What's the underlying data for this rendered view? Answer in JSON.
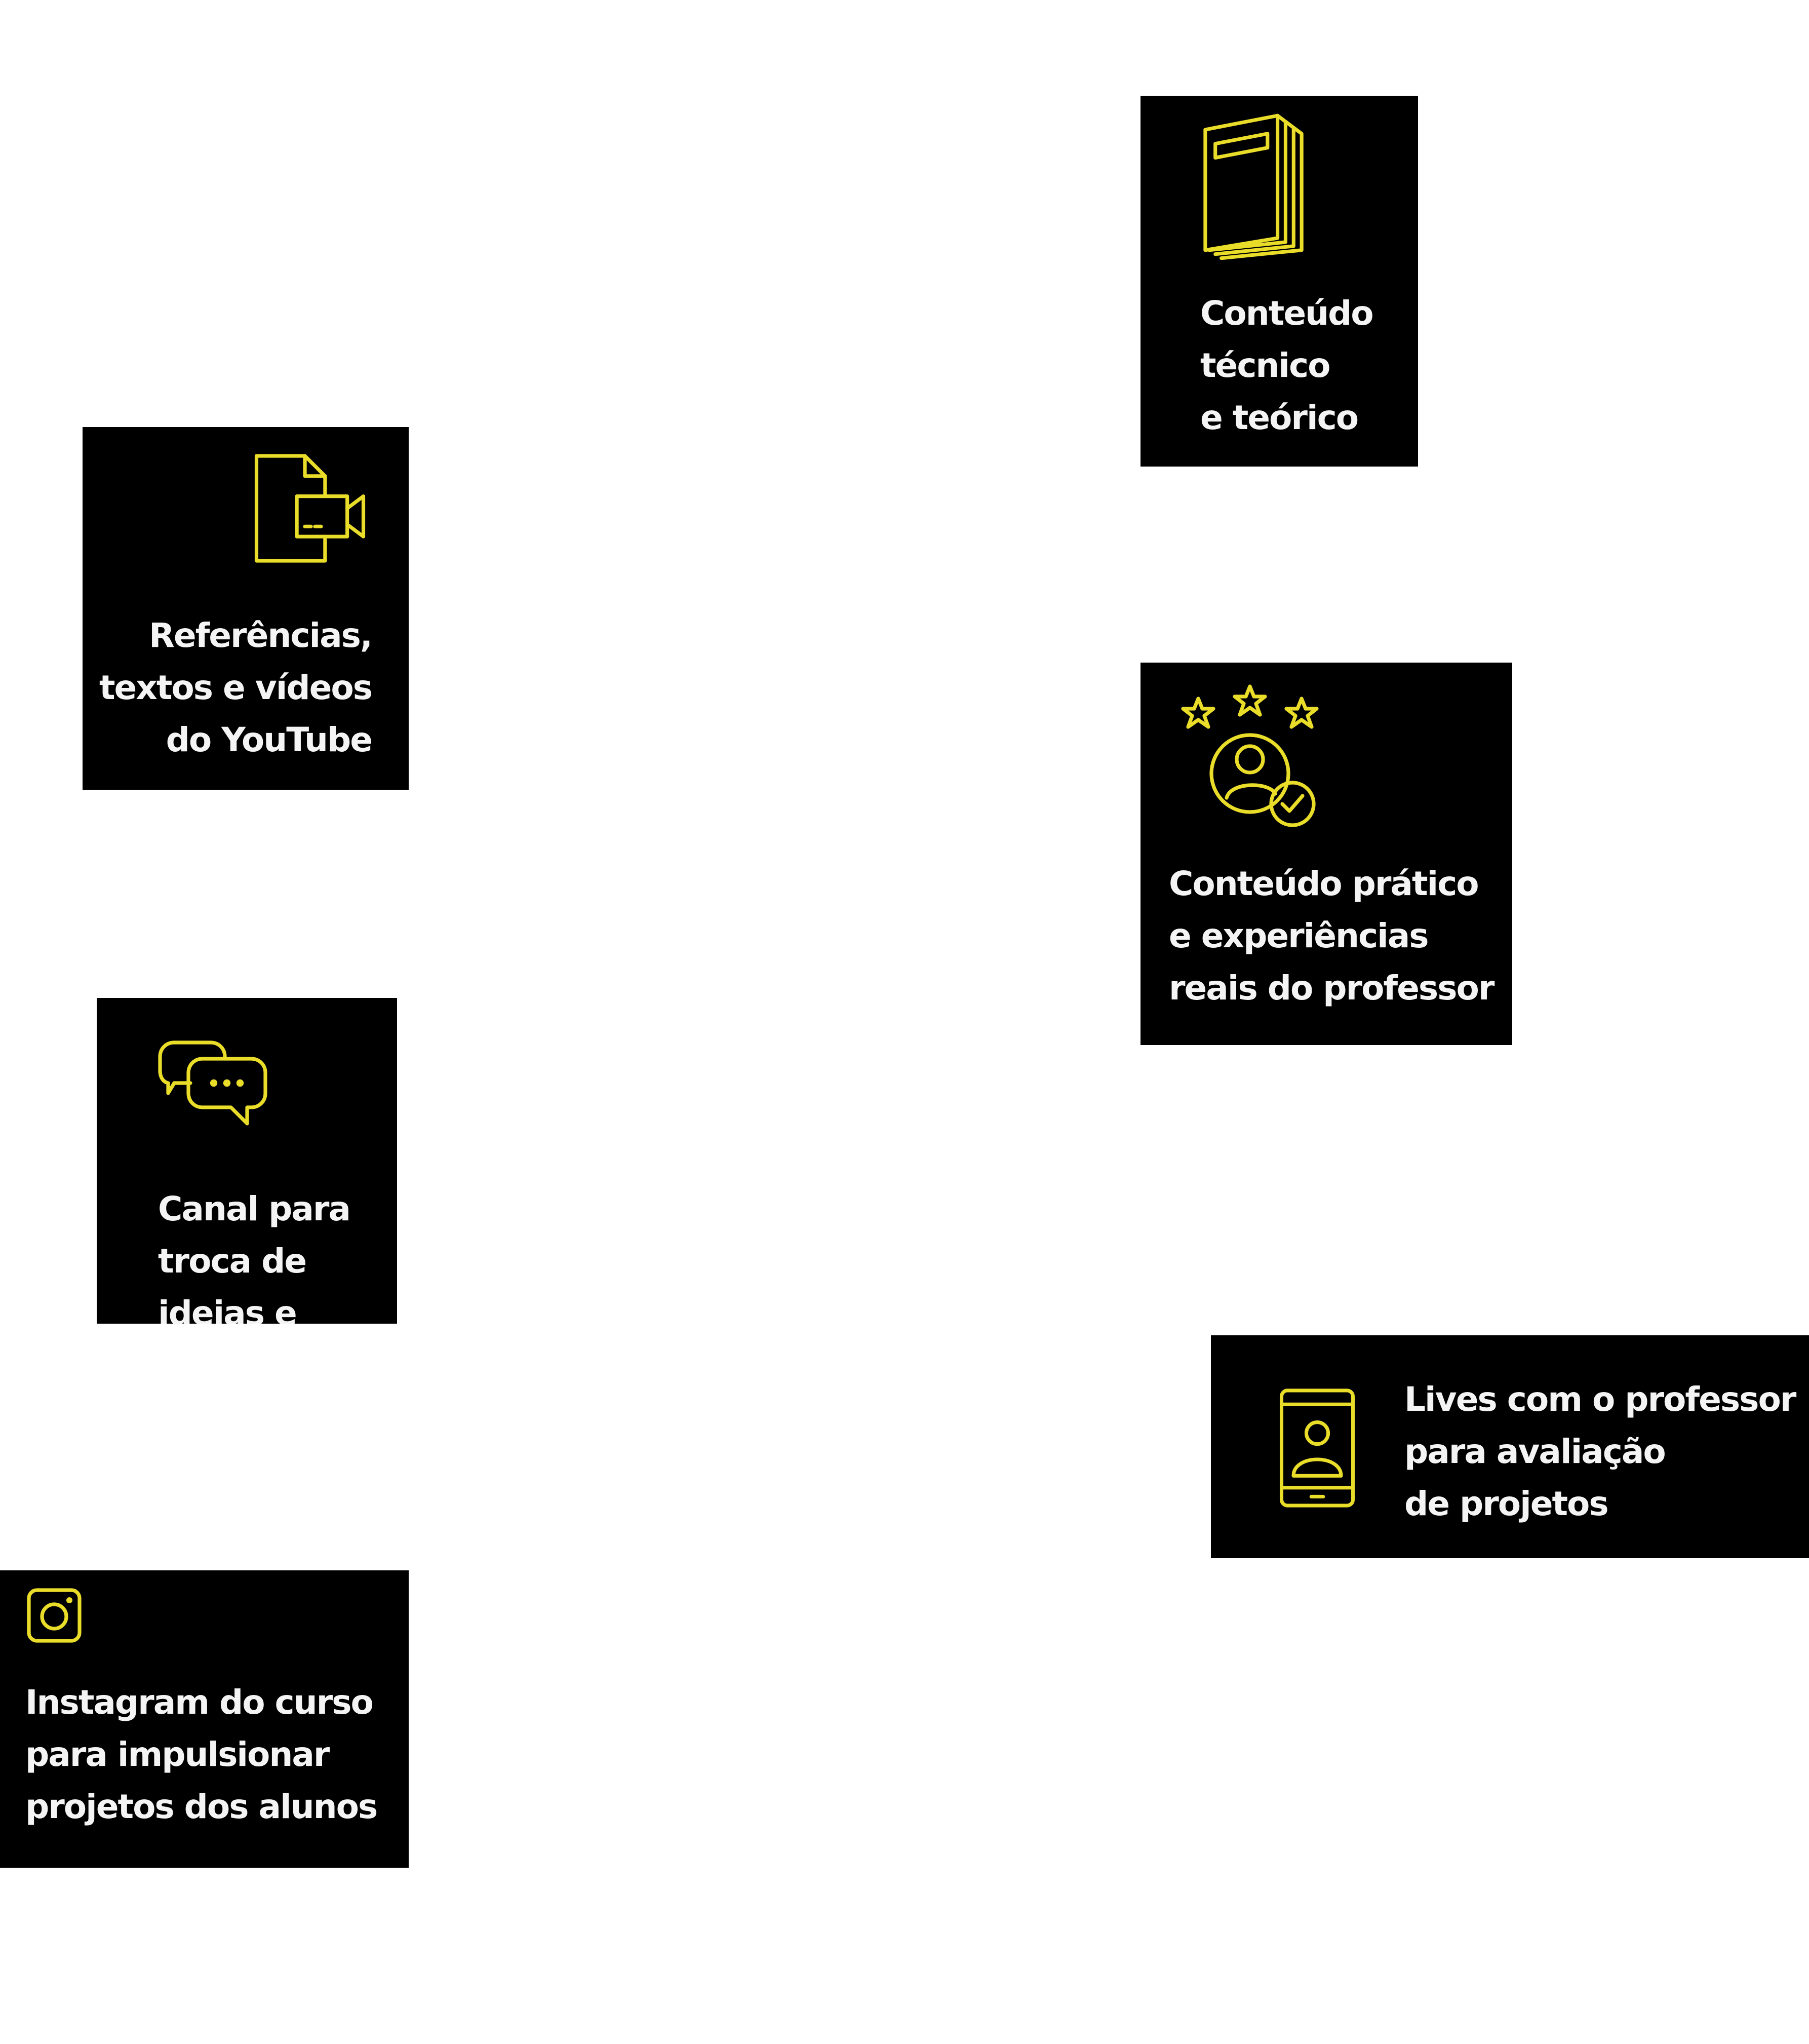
{
  "theme": {
    "background": "#ffffff",
    "card_background": "#000000",
    "text_color": "#f4f4f4",
    "icon_color": "#e9dd2a"
  },
  "cards": {
    "technical": {
      "icon": "book-icon",
      "lines": [
        "Conteúdo",
        "técnico",
        "e teórico"
      ]
    },
    "references": {
      "icon": "video-file-icon",
      "lines": [
        "Referências,",
        "textos e vídeos",
        "do YouTube"
      ]
    },
    "practical": {
      "icon": "rated-user-icon",
      "lines": [
        "Conteúdo prático",
        "e experiências",
        "reais do professor"
      ]
    },
    "channel": {
      "icon": "chat-bubbles-icon",
      "lines": [
        "Canal para",
        "troca de",
        "ideias e"
      ]
    },
    "lives": {
      "icon": "phone-video-call-icon",
      "lines": [
        "Lives com o professor",
        "para avaliação",
        "de projetos"
      ]
    },
    "instagram": {
      "icon": "instagram-icon",
      "lines": [
        "Instagram do curso",
        "para impulsionar",
        "projetos dos alunos"
      ]
    }
  }
}
